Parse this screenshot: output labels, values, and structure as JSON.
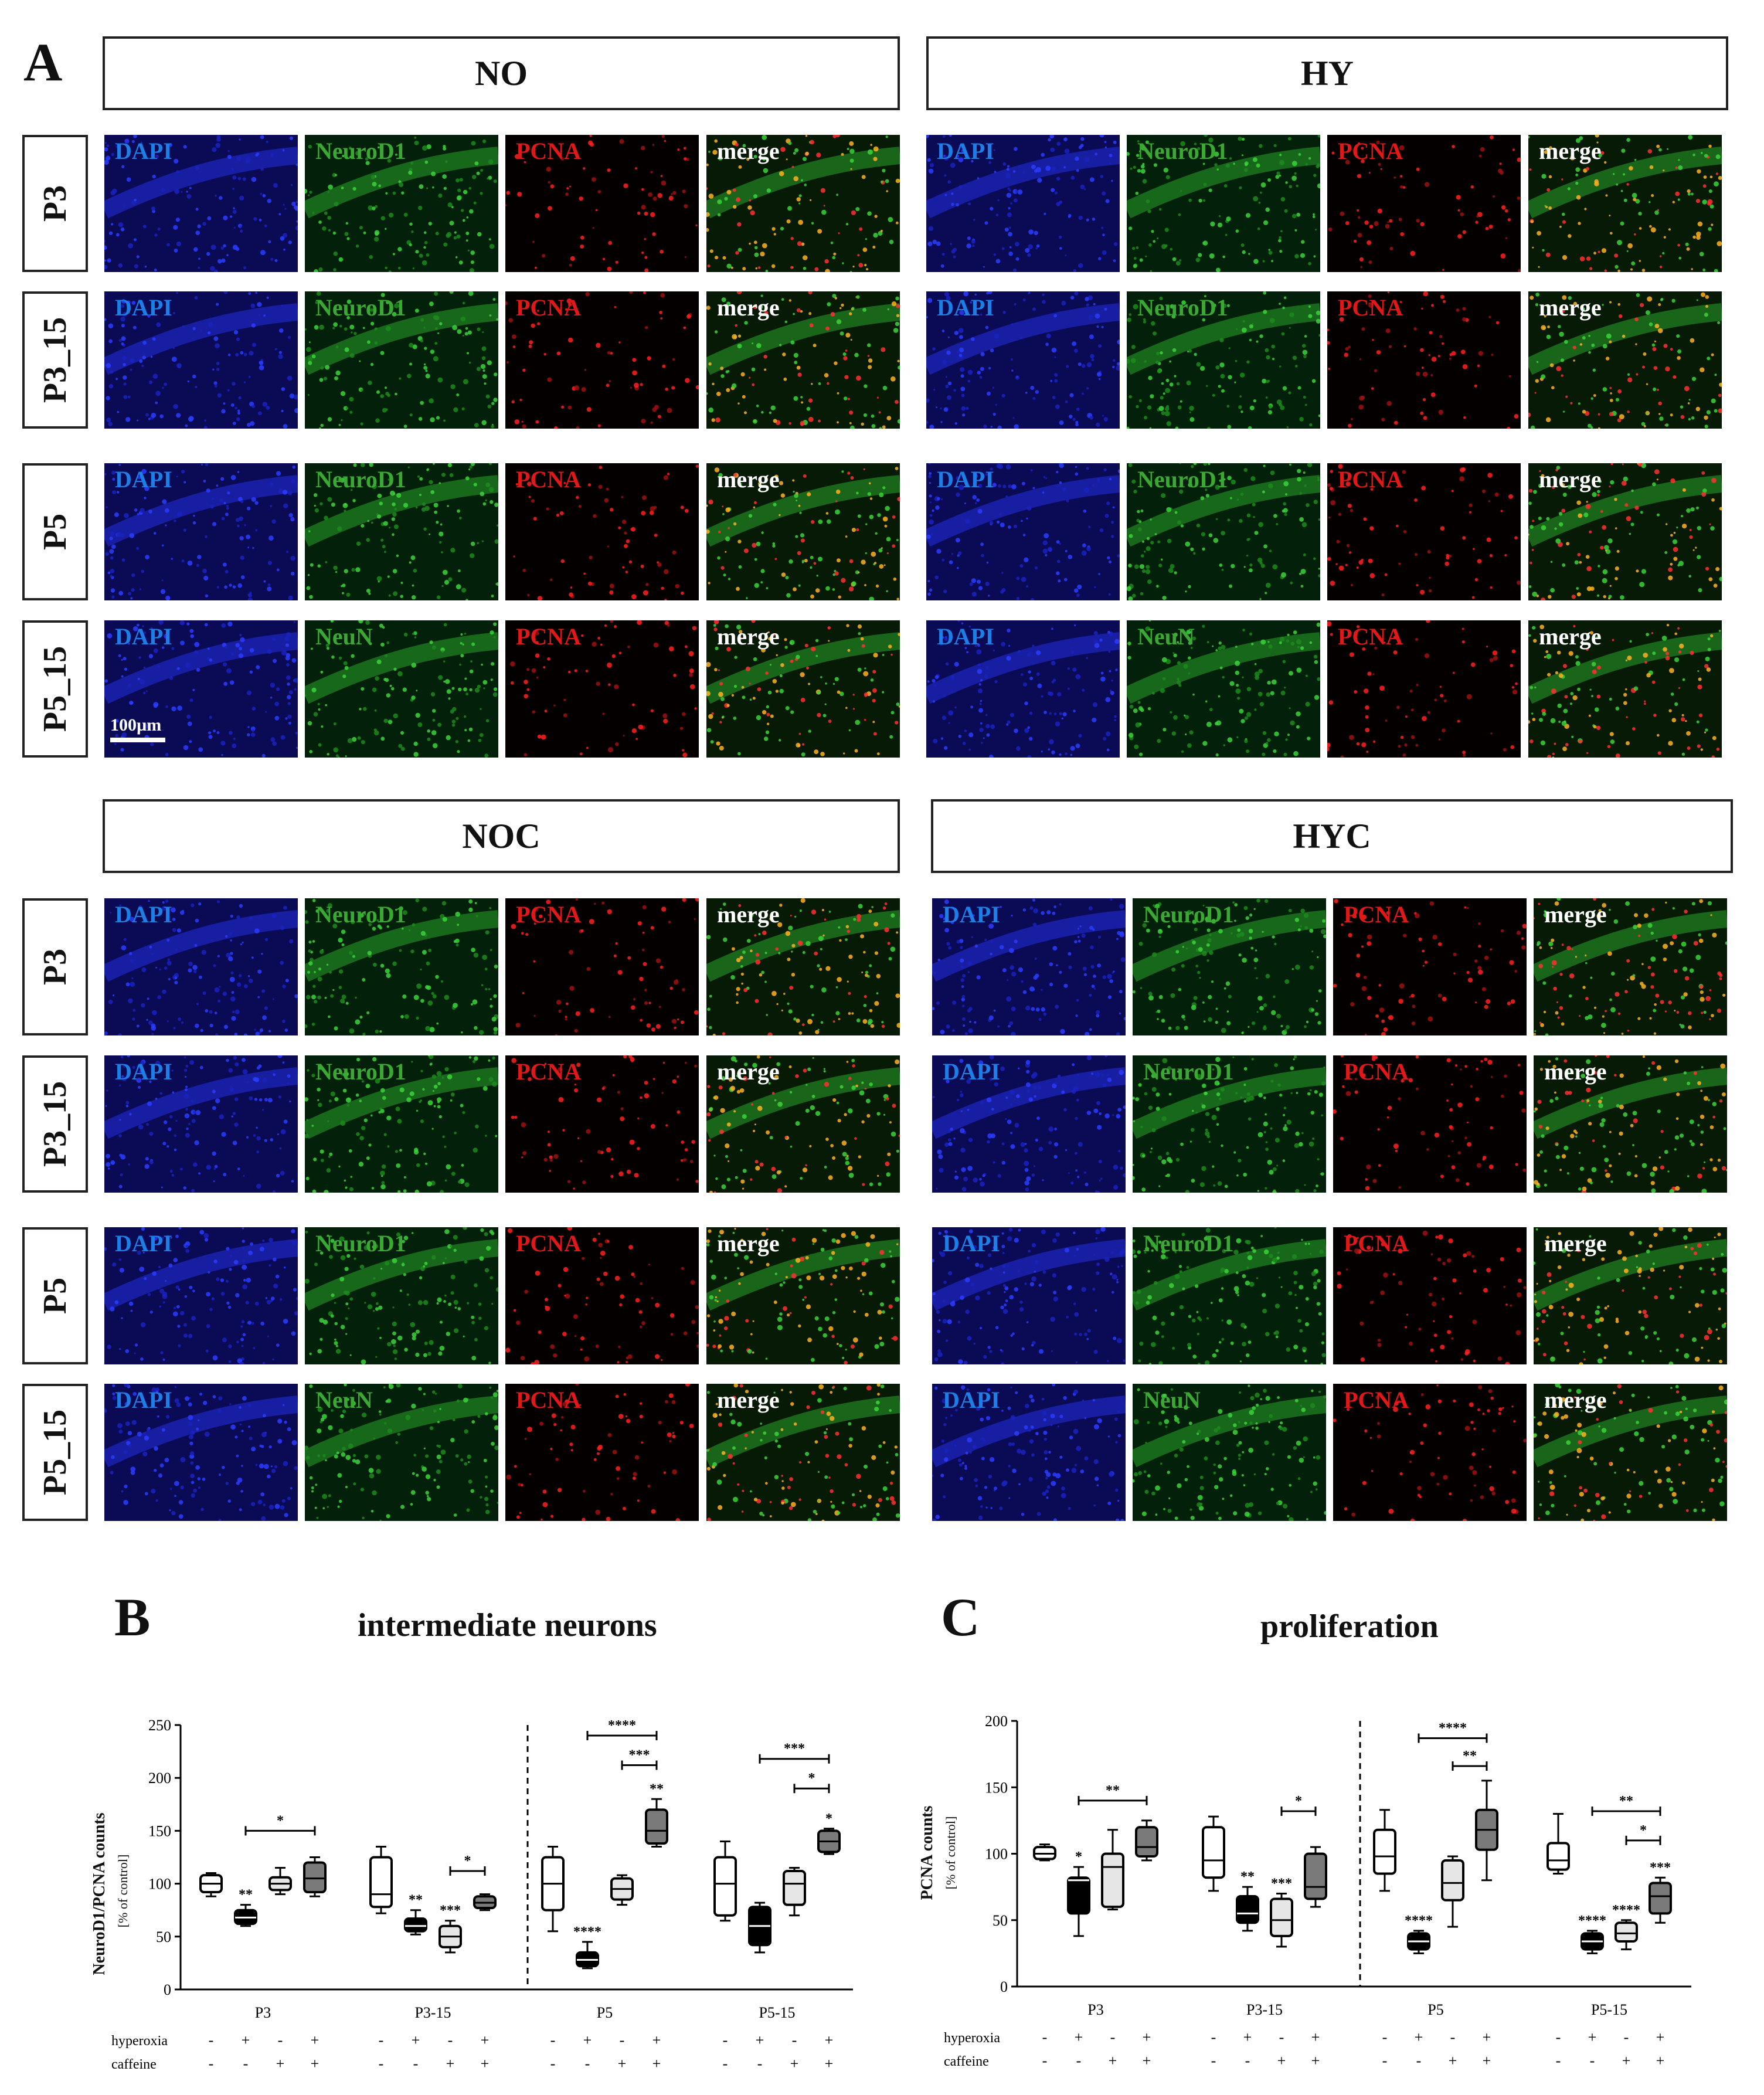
{
  "figure": {
    "panel_a": "A",
    "conditions": [
      {
        "label": "NO",
        "rows": [
          {
            "row": "P3",
            "tiles": [
              {
                "label": "DAPI",
                "color": "#1d7fe6"
              },
              {
                "label": "NeuroD1",
                "color": "#3aa832"
              },
              {
                "label": "PCNA",
                "color": "#e01818"
              },
              {
                "label": "merge",
                "color": "#ffffff"
              }
            ]
          },
          {
            "row": "P3_15",
            "tiles": [
              {
                "label": "DAPI",
                "color": "#1d7fe6"
              },
              {
                "label": "NeuroD1",
                "color": "#3aa832"
              },
              {
                "label": "PCNA",
                "color": "#e01818"
              },
              {
                "label": "merge",
                "color": "#ffffff"
              }
            ]
          },
          {
            "row": "P5",
            "tiles": [
              {
                "label": "DAPI",
                "color": "#1d7fe6"
              },
              {
                "label": "NeuroD1",
                "color": "#3aa832"
              },
              {
                "label": "PCNA",
                "color": "#e01818"
              },
              {
                "label": "merge",
                "color": "#ffffff"
              }
            ]
          },
          {
            "row": "P5_15",
            "tiles": [
              {
                "label": "DAPI",
                "color": "#1d7fe6"
              },
              {
                "label": "NeuN",
                "color": "#3aa832"
              },
              {
                "label": "PCNA",
                "color": "#e01818"
              },
              {
                "label": "merge",
                "color": "#ffffff"
              }
            ]
          }
        ]
      },
      {
        "label": "HY",
        "rows": [
          {
            "row": "P3",
            "tiles": [
              {
                "label": "DAPI",
                "color": "#1d7fe6"
              },
              {
                "label": "NeuroD1",
                "color": "#3aa832"
              },
              {
                "label": "PCNA",
                "color": "#e01818"
              },
              {
                "label": "merge",
                "color": "#ffffff"
              }
            ]
          },
          {
            "row": "P3_15",
            "tiles": [
              {
                "label": "DAPI",
                "color": "#1d7fe6"
              },
              {
                "label": "NeuroD1",
                "color": "#3aa832"
              },
              {
                "label": "PCNA",
                "color": "#e01818"
              },
              {
                "label": "merge",
                "color": "#ffffff"
              }
            ]
          },
          {
            "row": "P5",
            "tiles": [
              {
                "label": "DAPI",
                "color": "#1d7fe6"
              },
              {
                "label": "NeuroD1",
                "color": "#3aa832"
              },
              {
                "label": "PCNA",
                "color": "#e01818"
              },
              {
                "label": "merge",
                "color": "#ffffff"
              }
            ]
          },
          {
            "row": "P5_15",
            "tiles": [
              {
                "label": "DAPI",
                "color": "#1d7fe6"
              },
              {
                "label": "NeuN",
                "color": "#3aa832"
              },
              {
                "label": "PCNA",
                "color": "#e01818"
              },
              {
                "label": "merge",
                "color": "#ffffff"
              }
            ]
          }
        ]
      },
      {
        "label": "NOC",
        "rows": [
          {
            "row": "P3",
            "tiles": [
              {
                "label": "DAPI",
                "color": "#1d7fe6"
              },
              {
                "label": "NeuroD1",
                "color": "#3aa832"
              },
              {
                "label": "PCNA",
                "color": "#e01818"
              },
              {
                "label": "merge",
                "color": "#ffffff"
              }
            ]
          },
          {
            "row": "P3_15",
            "tiles": [
              {
                "label": "DAPI",
                "color": "#1d7fe6"
              },
              {
                "label": "NeuroD1",
                "color": "#3aa832"
              },
              {
                "label": "PCNA",
                "color": "#e01818"
              },
              {
                "label": "merge",
                "color": "#ffffff"
              }
            ]
          },
          {
            "row": "P5",
            "tiles": [
              {
                "label": "DAPI",
                "color": "#1d7fe6"
              },
              {
                "label": "NeuroD1",
                "color": "#3aa832"
              },
              {
                "label": "PCNA",
                "color": "#e01818"
              },
              {
                "label": "merge",
                "color": "#ffffff"
              }
            ]
          },
          {
            "row": "P5_15",
            "tiles": [
              {
                "label": "DAPI",
                "color": "#1d7fe6"
              },
              {
                "label": "NeuN",
                "color": "#3aa832"
              },
              {
                "label": "PCNA",
                "color": "#e01818"
              },
              {
                "label": "merge",
                "color": "#ffffff"
              }
            ]
          }
        ]
      },
      {
        "label": "HYC",
        "rows": [
          {
            "row": "P3",
            "tiles": [
              {
                "label": "DAPI",
                "color": "#1d7fe6"
              },
              {
                "label": "NeuroD1",
                "color": "#3aa832"
              },
              {
                "label": "PCNA",
                "color": "#e01818"
              },
              {
                "label": "merge",
                "color": "#ffffff"
              }
            ]
          },
          {
            "row": "P3_15",
            "tiles": [
              {
                "label": "DAPI",
                "color": "#1d7fe6"
              },
              {
                "label": "NeuroD1",
                "color": "#3aa832"
              },
              {
                "label": "PCNA",
                "color": "#e01818"
              },
              {
                "label": "merge",
                "color": "#ffffff"
              }
            ]
          },
          {
            "row": "P5",
            "tiles": [
              {
                "label": "DAPI",
                "color": "#1d7fe6"
              },
              {
                "label": "NeuroD1",
                "color": "#3aa832"
              },
              {
                "label": "PCNA",
                "color": "#e01818"
              },
              {
                "label": "merge",
                "color": "#ffffff"
              }
            ]
          },
          {
            "row": "P5_15",
            "tiles": [
              {
                "label": "DAPI",
                "color": "#1d7fe6"
              },
              {
                "label": "NeuN",
                "color": "#3aa832"
              },
              {
                "label": "PCNA",
                "color": "#e01818"
              },
              {
                "label": "merge",
                "color": "#ffffff"
              }
            ]
          }
        ]
      }
    ],
    "scale_bar": "100µm",
    "channel_colors": {
      "DAPI": "#1a2ad8",
      "NeuroD1": "#2fc22a",
      "NeuN": "#2fc22a",
      "PCNA": "#e31616"
    }
  },
  "chart_data": [
    {
      "panel": "B",
      "type": "box",
      "title": "intermediate neurons",
      "ylabel": "NeuroD1/PCNA counts",
      "ylabel_unit": "[% of control]",
      "ylim": [
        0,
        250
      ],
      "yticks": [
        0,
        50,
        100,
        150,
        200,
        250
      ],
      "groups": [
        "P3",
        "P3-15",
        "P5",
        "P5-15"
      ],
      "condition_labels": [
        "hyperoxia",
        "caffeine"
      ],
      "conditions": [
        {
          "hyperoxia": "-",
          "caffeine": "-",
          "fill": "#ffffff"
        },
        {
          "hyperoxia": "+",
          "caffeine": "-",
          "fill": "#000000"
        },
        {
          "hyperoxia": "-",
          "caffeine": "+",
          "fill": "#e6e6e6"
        },
        {
          "hyperoxia": "+",
          "caffeine": "+",
          "fill": "#7a7a7a"
        }
      ],
      "boxes": [
        {
          "group": "P3",
          "cond": 0,
          "min": 88,
          "q1": 92,
          "median": 100,
          "q3": 108,
          "max": 110,
          "star": ""
        },
        {
          "group": "P3",
          "cond": 1,
          "min": 60,
          "q1": 62,
          "median": 68,
          "q3": 75,
          "max": 80,
          "star": "**"
        },
        {
          "group": "P3",
          "cond": 2,
          "min": 90,
          "q1": 94,
          "median": 100,
          "q3": 106,
          "max": 115,
          "star": ""
        },
        {
          "group": "P3",
          "cond": 3,
          "min": 88,
          "q1": 92,
          "median": 105,
          "q3": 120,
          "max": 125,
          "star": ""
        },
        {
          "group": "P3-15",
          "cond": 0,
          "min": 72,
          "q1": 78,
          "median": 90,
          "q3": 125,
          "max": 135,
          "star": ""
        },
        {
          "group": "P3-15",
          "cond": 1,
          "min": 52,
          "q1": 55,
          "median": 60,
          "q3": 67,
          "max": 75,
          "star": "**"
        },
        {
          "group": "P3-15",
          "cond": 2,
          "min": 35,
          "q1": 40,
          "median": 50,
          "q3": 60,
          "max": 65,
          "star": "***"
        },
        {
          "group": "P3-15",
          "cond": 3,
          "min": 75,
          "q1": 77,
          "median": 82,
          "q3": 88,
          "max": 90,
          "star": ""
        },
        {
          "group": "P5",
          "cond": 0,
          "min": 55,
          "q1": 75,
          "median": 100,
          "q3": 125,
          "max": 135,
          "star": ""
        },
        {
          "group": "P5",
          "cond": 1,
          "min": 20,
          "q1": 22,
          "median": 28,
          "q3": 35,
          "max": 45,
          "star": "****"
        },
        {
          "group": "P5",
          "cond": 2,
          "min": 80,
          "q1": 85,
          "median": 95,
          "q3": 105,
          "max": 108,
          "star": ""
        },
        {
          "group": "P5",
          "cond": 3,
          "min": 135,
          "q1": 138,
          "median": 150,
          "q3": 170,
          "max": 180,
          "star": "**"
        },
        {
          "group": "P5-15",
          "cond": 0,
          "min": 65,
          "q1": 70,
          "median": 100,
          "q3": 125,
          "max": 140,
          "star": ""
        },
        {
          "group": "P5-15",
          "cond": 1,
          "min": 35,
          "q1": 42,
          "median": 60,
          "q3": 78,
          "max": 82,
          "star": ""
        },
        {
          "group": "P5-15",
          "cond": 2,
          "min": 70,
          "q1": 80,
          "median": 100,
          "q3": 112,
          "max": 115,
          "star": ""
        },
        {
          "group": "P5-15",
          "cond": 3,
          "min": 128,
          "q1": 130,
          "median": 140,
          "q3": 150,
          "max": 152,
          "star": "*"
        }
      ],
      "brackets": [
        {
          "group": "P3",
          "from": 1,
          "to": 3,
          "y": 150,
          "label": "*"
        },
        {
          "group": "P3-15",
          "from": 2,
          "to": 3,
          "y": 112,
          "label": "*"
        },
        {
          "group": "P5",
          "from": 1,
          "to": 3,
          "y": 240,
          "label": "****"
        },
        {
          "group": "P5",
          "from": 2,
          "to": 3,
          "y": 212,
          "label": "***"
        },
        {
          "group": "P5-15",
          "from": 1,
          "to": 3,
          "y": 218,
          "label": "***"
        },
        {
          "group": "P5-15",
          "from": 2,
          "to": 3,
          "y": 190,
          "label": "*"
        }
      ]
    },
    {
      "panel": "C",
      "type": "box",
      "title": "proliferation",
      "ylabel": "PCNA counts",
      "ylabel_unit": "[% of control]",
      "ylim": [
        0,
        200
      ],
      "yticks": [
        0,
        50,
        100,
        150,
        200
      ],
      "groups": [
        "P3",
        "P3-15",
        "P5",
        "P5-15"
      ],
      "condition_labels": [
        "hyperoxia",
        "caffeine"
      ],
      "conditions": [
        {
          "hyperoxia": "-",
          "caffeine": "-",
          "fill": "#ffffff"
        },
        {
          "hyperoxia": "+",
          "caffeine": "-",
          "fill": "#000000"
        },
        {
          "hyperoxia": "-",
          "caffeine": "+",
          "fill": "#e6e6e6"
        },
        {
          "hyperoxia": "+",
          "caffeine": "+",
          "fill": "#7a7a7a"
        }
      ],
      "boxes": [
        {
          "group": "P3",
          "cond": 0,
          "min": 95,
          "q1": 96,
          "median": 100,
          "q3": 105,
          "max": 107,
          "star": ""
        },
        {
          "group": "P3",
          "cond": 1,
          "min": 38,
          "q1": 55,
          "median": 80,
          "q3": 82,
          "max": 90,
          "star": "*"
        },
        {
          "group": "P3",
          "cond": 2,
          "min": 58,
          "q1": 60,
          "median": 90,
          "q3": 100,
          "max": 118,
          "star": ""
        },
        {
          "group": "P3",
          "cond": 3,
          "min": 95,
          "q1": 98,
          "median": 105,
          "q3": 120,
          "max": 125,
          "star": ""
        },
        {
          "group": "P3-15",
          "cond": 0,
          "min": 72,
          "q1": 82,
          "median": 95,
          "q3": 120,
          "max": 128,
          "star": ""
        },
        {
          "group": "P3-15",
          "cond": 1,
          "min": 42,
          "q1": 48,
          "median": 55,
          "q3": 68,
          "max": 75,
          "star": "**"
        },
        {
          "group": "P3-15",
          "cond": 2,
          "min": 30,
          "q1": 38,
          "median": 50,
          "q3": 66,
          "max": 70,
          "star": "***"
        },
        {
          "group": "P3-15",
          "cond": 3,
          "min": 60,
          "q1": 66,
          "median": 75,
          "q3": 100,
          "max": 105,
          "star": ""
        },
        {
          "group": "P5",
          "cond": 0,
          "min": 72,
          "q1": 85,
          "median": 98,
          "q3": 118,
          "max": 133,
          "star": ""
        },
        {
          "group": "P5",
          "cond": 1,
          "min": 25,
          "q1": 28,
          "median": 34,
          "q3": 40,
          "max": 42,
          "star": "****"
        },
        {
          "group": "P5",
          "cond": 2,
          "min": 45,
          "q1": 65,
          "median": 78,
          "q3": 95,
          "max": 98,
          "star": ""
        },
        {
          "group": "P5",
          "cond": 3,
          "min": 80,
          "q1": 103,
          "median": 118,
          "q3": 133,
          "max": 155,
          "star": ""
        },
        {
          "group": "P5-15",
          "cond": 0,
          "min": 85,
          "q1": 88,
          "median": 95,
          "q3": 108,
          "max": 130,
          "star": ""
        },
        {
          "group": "P5-15",
          "cond": 1,
          "min": 25,
          "q1": 28,
          "median": 34,
          "q3": 40,
          "max": 42,
          "star": "****"
        },
        {
          "group": "P5-15",
          "cond": 2,
          "min": 28,
          "q1": 34,
          "median": 40,
          "q3": 48,
          "max": 50,
          "star": "****"
        },
        {
          "group": "P5-15",
          "cond": 3,
          "min": 48,
          "q1": 55,
          "median": 68,
          "q3": 78,
          "max": 82,
          "star": "***"
        }
      ],
      "brackets": [
        {
          "group": "P3",
          "from": 1,
          "to": 3,
          "y": 140,
          "label": "**"
        },
        {
          "group": "P3-15",
          "from": 2,
          "to": 3,
          "y": 132,
          "label": "*"
        },
        {
          "group": "P5",
          "from": 1,
          "to": 3,
          "y": 187,
          "label": "****"
        },
        {
          "group": "P5",
          "from": 2,
          "to": 3,
          "y": 166,
          "label": "**"
        },
        {
          "group": "P5-15",
          "from": 1,
          "to": 3,
          "y": 132,
          "label": "**"
        },
        {
          "group": "P5-15",
          "from": 2,
          "to": 3,
          "y": 110,
          "label": "*"
        }
      ]
    }
  ]
}
